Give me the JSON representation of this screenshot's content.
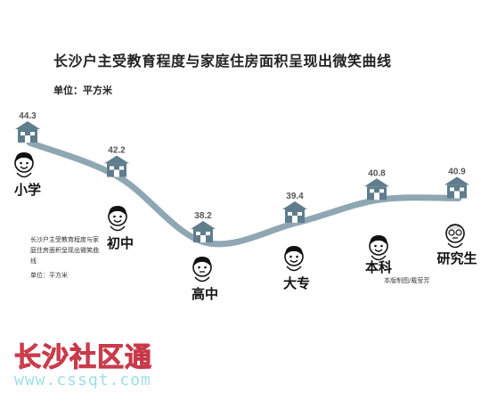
{
  "title": "长沙户主受教育程度与家庭住房面积呈现出微笑曲线",
  "unit_label": "单位：平方米",
  "side_note": {
    "text": "长沙户主受教育程度与家庭住房面积呈现出微笑曲线",
    "unit": "单位：平方米"
  },
  "credit": "本版制图/戴莹芳",
  "watermark": {
    "text": "长沙社区通",
    "url": "www.cssqt.com",
    "color": "#ec5b6b"
  },
  "colors": {
    "curve": "#8fa7b3",
    "house": "#5f7d8c"
  },
  "chart_data": {
    "type": "line",
    "title": "长沙户主受教育程度与家庭住房面积呈现出微笑曲线",
    "ylabel": "单位：平方米",
    "categories": [
      "小学",
      "初中",
      "高中",
      "大专",
      "本科",
      "研究生"
    ],
    "values": [
      44.3,
      42.2,
      38.2,
      39.4,
      40.8,
      40.9
    ],
    "value_labels": [
      "44.3",
      "42.2",
      "38.2",
      "39.4",
      "40.8",
      "40.9"
    ],
    "ylim": [
      37,
      46
    ],
    "grid": false
  }
}
